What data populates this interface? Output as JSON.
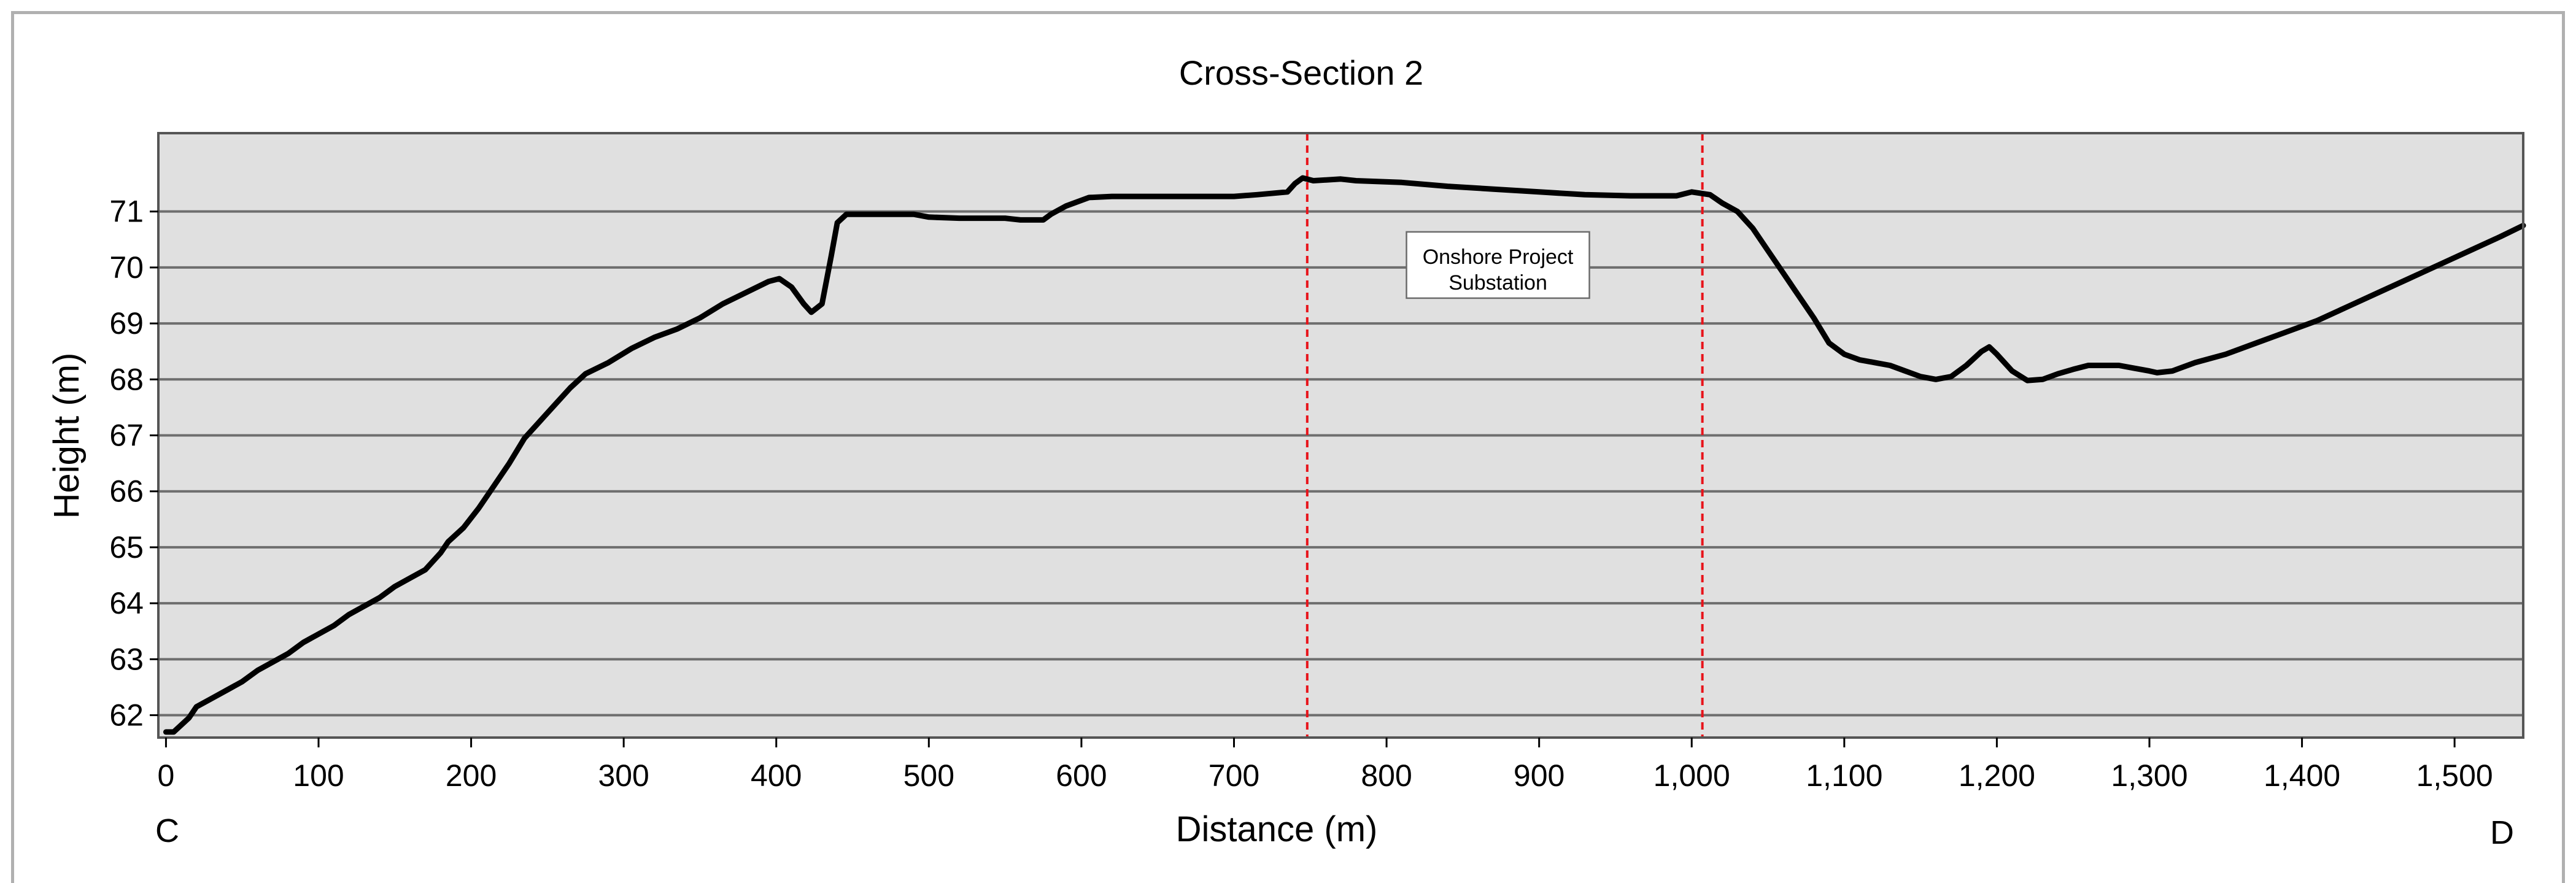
{
  "chart_data": {
    "type": "line",
    "title": "Cross-Section 2",
    "xlabel": "Distance (m)",
    "ylabel": "Height (m)",
    "xlim": [
      -5,
      1545
    ],
    "ylim": [
      61.6,
      72.4
    ],
    "grid": true,
    "x_ticks": [
      0,
      100,
      200,
      300,
      400,
      500,
      600,
      700,
      800,
      900,
      1000,
      1100,
      1200,
      1300,
      1400,
      1500
    ],
    "x_tick_labels": [
      "0",
      "100",
      "200",
      "300",
      "400",
      "500",
      "600",
      "700",
      "800",
      "900",
      "1,000",
      "1,100",
      "1,200",
      "1,300",
      "1,400",
      "1,500"
    ],
    "y_ticks": [
      62,
      63,
      64,
      65,
      66,
      67,
      68,
      69,
      70,
      71
    ],
    "y_tick_labels": [
      "62",
      "63",
      "64",
      "65",
      "66",
      "67",
      "68",
      "69",
      "70",
      "71"
    ],
    "start_label": "C",
    "end_label": "D",
    "vlines": [
      748,
      1007
    ],
    "annotation": {
      "line1": "Onshore Project",
      "line2": "Substation",
      "x": 873,
      "y": 70.0
    },
    "series": [
      {
        "points": [
          [
            0,
            61.7
          ],
          [
            5,
            61.7
          ],
          [
            15,
            61.95
          ],
          [
            20,
            62.15
          ],
          [
            30,
            62.3
          ],
          [
            40,
            62.45
          ],
          [
            50,
            62.6
          ],
          [
            60,
            62.8
          ],
          [
            70,
            62.95
          ],
          [
            80,
            63.1
          ],
          [
            90,
            63.3
          ],
          [
            100,
            63.45
          ],
          [
            110,
            63.6
          ],
          [
            120,
            63.8
          ],
          [
            130,
            63.95
          ],
          [
            140,
            64.1
          ],
          [
            150,
            64.3
          ],
          [
            160,
            64.45
          ],
          [
            170,
            64.6
          ],
          [
            180,
            64.9
          ],
          [
            185,
            65.1
          ],
          [
            195,
            65.35
          ],
          [
            205,
            65.7
          ],
          [
            215,
            66.1
          ],
          [
            225,
            66.5
          ],
          [
            235,
            66.95
          ],
          [
            245,
            67.25
          ],
          [
            255,
            67.55
          ],
          [
            265,
            67.85
          ],
          [
            275,
            68.1
          ],
          [
            290,
            68.3
          ],
          [
            305,
            68.55
          ],
          [
            320,
            68.75
          ],
          [
            335,
            68.9
          ],
          [
            350,
            69.1
          ],
          [
            365,
            69.35
          ],
          [
            380,
            69.55
          ],
          [
            395,
            69.75
          ],
          [
            402,
            69.8
          ],
          [
            410,
            69.65
          ],
          [
            418,
            69.35
          ],
          [
            423,
            69.2
          ],
          [
            430,
            69.35
          ],
          [
            436,
            70.2
          ],
          [
            440,
            70.8
          ],
          [
            446,
            70.95
          ],
          [
            470,
            70.95
          ],
          [
            490,
            70.95
          ],
          [
            500,
            70.9
          ],
          [
            520,
            70.88
          ],
          [
            550,
            70.88
          ],
          [
            560,
            70.85
          ],
          [
            575,
            70.85
          ],
          [
            580,
            70.95
          ],
          [
            590,
            71.1
          ],
          [
            605,
            71.25
          ],
          [
            620,
            71.27
          ],
          [
            650,
            71.27
          ],
          [
            700,
            71.27
          ],
          [
            715,
            71.3
          ],
          [
            735,
            71.35
          ],
          [
            740,
            71.5
          ],
          [
            745,
            71.6
          ],
          [
            752,
            71.55
          ],
          [
            770,
            71.58
          ],
          [
            780,
            71.55
          ],
          [
            810,
            71.52
          ],
          [
            840,
            71.45
          ],
          [
            870,
            71.4
          ],
          [
            900,
            71.35
          ],
          [
            930,
            71.3
          ],
          [
            960,
            71.28
          ],
          [
            990,
            71.28
          ],
          [
            1000,
            71.35
          ],
          [
            1012,
            71.3
          ],
          [
            1020,
            71.15
          ],
          [
            1030,
            71.0
          ],
          [
            1040,
            70.7
          ],
          [
            1050,
            70.3
          ],
          [
            1060,
            69.9
          ],
          [
            1070,
            69.5
          ],
          [
            1080,
            69.1
          ],
          [
            1090,
            68.65
          ],
          [
            1100,
            68.45
          ],
          [
            1110,
            68.35
          ],
          [
            1120,
            68.3
          ],
          [
            1130,
            68.25
          ],
          [
            1140,
            68.15
          ],
          [
            1150,
            68.05
          ],
          [
            1160,
            68.0
          ],
          [
            1170,
            68.05
          ],
          [
            1180,
            68.25
          ],
          [
            1190,
            68.5
          ],
          [
            1195,
            68.58
          ],
          [
            1200,
            68.45
          ],
          [
            1210,
            68.15
          ],
          [
            1220,
            67.98
          ],
          [
            1230,
            68.0
          ],
          [
            1240,
            68.1
          ],
          [
            1250,
            68.18
          ],
          [
            1260,
            68.25
          ],
          [
            1270,
            68.25
          ],
          [
            1280,
            68.25
          ],
          [
            1290,
            68.2
          ],
          [
            1300,
            68.15
          ],
          [
            1305,
            68.12
          ],
          [
            1315,
            68.15
          ],
          [
            1330,
            68.3
          ],
          [
            1350,
            68.45
          ],
          [
            1370,
            68.65
          ],
          [
            1390,
            68.85
          ],
          [
            1410,
            69.05
          ],
          [
            1430,
            69.3
          ],
          [
            1450,
            69.55
          ],
          [
            1470,
            69.8
          ],
          [
            1490,
            70.05
          ],
          [
            1510,
            70.3
          ],
          [
            1530,
            70.55
          ],
          [
            1545,
            70.75
          ]
        ]
      }
    ]
  }
}
